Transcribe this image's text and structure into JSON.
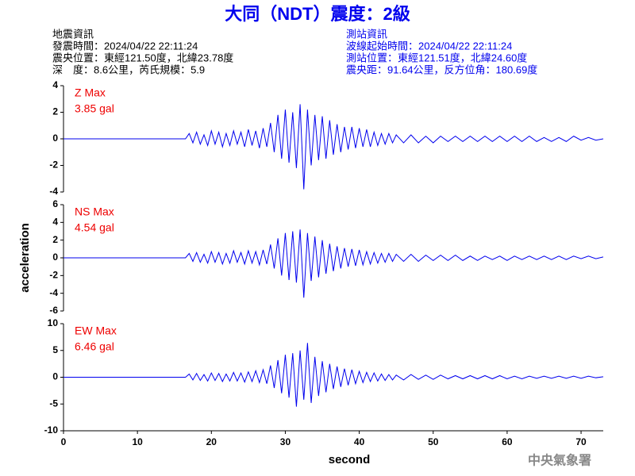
{
  "header": {
    "title": "大同（NDT）震度：2級",
    "quake_info": [
      "地震資訊",
      "發震時間：2024/04/22 22:11:24",
      "震央位置：東經121.50度，北緯23.78度",
      "深　度：8.6公里，芮氏規模：5.9"
    ],
    "station_info": [
      "測站資訊",
      "波線起始時間：2024/04/22 22:11:24",
      "測站位置：東經121.51度，北緯24.60度",
      "震央距：91.64公里，反方位角：180.69度"
    ]
  },
  "chart_data": [
    {
      "type": "line",
      "xlim": [
        0,
        73
      ],
      "ylim": [
        -4,
        4
      ],
      "yticks": [
        -4,
        -2,
        0,
        2,
        4
      ],
      "x": [
        0,
        16.5,
        17,
        17.5,
        18,
        18.5,
        19,
        19.5,
        20,
        20.5,
        21,
        21.5,
        22,
        22.5,
        23,
        23.5,
        24,
        24.5,
        25,
        25.5,
        26,
        26.5,
        27,
        27.5,
        28,
        28.5,
        29,
        29.5,
        30,
        30.5,
        31,
        31.5,
        32,
        32.5,
        33,
        33.5,
        34,
        34.5,
        35,
        35.5,
        36,
        36.5,
        37,
        37.5,
        38,
        38.5,
        39,
        39.5,
        40,
        40.5,
        41,
        41.5,
        42,
        42.5,
        43,
        43.5,
        44,
        44.5,
        45,
        46,
        47,
        48,
        49,
        50,
        51,
        52,
        53,
        54,
        55,
        56,
        57,
        58,
        59,
        60,
        61,
        62,
        63,
        64,
        65,
        66,
        67,
        68,
        69,
        70,
        71,
        72,
        73
      ],
      "series": [
        {
          "name": "Z Max",
          "color": "#0000ee",
          "label_color": "#ee0000",
          "max_label": "3.85 gal",
          "values": [
            0,
            0,
            0.4,
            -0.3,
            0.5,
            -0.4,
            0.3,
            -0.5,
            0.6,
            -0.4,
            0.5,
            -0.6,
            0.4,
            -0.5,
            0.6,
            -0.4,
            0.5,
            -0.6,
            0.7,
            -0.5,
            0.6,
            -0.7,
            0.8,
            -0.6,
            1.2,
            -1.0,
            1.8,
            -1.5,
            2.2,
            -1.8,
            2.0,
            -2.2,
            2.6,
            -3.8,
            2.2,
            -2.0,
            1.8,
            -1.6,
            1.7,
            -1.5,
            1.4,
            -1.2,
            1.1,
            -1.0,
            0.9,
            -0.8,
            0.9,
            -0.7,
            0.8,
            -0.6,
            0.7,
            -0.6,
            0.5,
            -0.5,
            0.4,
            -0.4,
            0.4,
            -0.3,
            0.3,
            -0.3,
            0.3,
            -0.3,
            0.2,
            -0.3,
            0.2,
            -0.2,
            0.2,
            -0.2,
            0.2,
            -0.2,
            0.2,
            -0.2,
            0.2,
            -0.2,
            0.2,
            -0.2,
            0.2,
            -0.2,
            0.1,
            -0.2,
            0.1,
            -0.2,
            0.2,
            -0.1,
            0.1,
            -0.1,
            0
          ]
        }
      ]
    },
    {
      "type": "line",
      "xlim": [
        0,
        73
      ],
      "ylim": [
        -6,
        6
      ],
      "yticks": [
        -6,
        -4,
        -2,
        0,
        2,
        4,
        6
      ],
      "ylabel": "acceleration",
      "x": [
        0,
        16.5,
        17,
        17.5,
        18,
        18.5,
        19,
        19.5,
        20,
        20.5,
        21,
        21.5,
        22,
        22.5,
        23,
        23.5,
        24,
        24.5,
        25,
        25.5,
        26,
        26.5,
        27,
        27.5,
        28,
        28.5,
        29,
        29.5,
        30,
        30.5,
        31,
        31.5,
        32,
        32.5,
        33,
        33.5,
        34,
        34.5,
        35,
        35.5,
        36,
        36.5,
        37,
        37.5,
        38,
        38.5,
        39,
        39.5,
        40,
        40.5,
        41,
        41.5,
        42,
        42.5,
        43,
        43.5,
        44,
        44.5,
        45,
        46,
        47,
        48,
        49,
        50,
        51,
        52,
        53,
        54,
        55,
        56,
        57,
        58,
        59,
        60,
        61,
        62,
        63,
        64,
        65,
        66,
        67,
        68,
        69,
        70,
        71,
        72,
        73
      ],
      "series": [
        {
          "name": "NS Max",
          "color": "#0000ee",
          "label_color": "#ee0000",
          "max_label": "4.54 gal",
          "values": [
            0,
            0,
            0.5,
            -0.4,
            0.6,
            -0.5,
            0.4,
            -0.6,
            0.7,
            -0.5,
            0.6,
            -0.7,
            0.5,
            -0.6,
            0.8,
            -0.5,
            0.6,
            -0.7,
            0.8,
            -0.6,
            0.7,
            -0.8,
            0.9,
            -0.7,
            1.5,
            -1.2,
            2.2,
            -2.0,
            2.8,
            -2.5,
            3.0,
            -2.8,
            3.2,
            -4.5,
            2.8,
            -2.6,
            2.4,
            -2.2,
            2.0,
            -1.8,
            1.6,
            -1.5,
            1.3,
            -1.2,
            1.1,
            -1.0,
            1.0,
            -0.9,
            0.9,
            -0.8,
            0.7,
            -0.7,
            0.6,
            -0.6,
            0.5,
            -0.5,
            0.5,
            -0.4,
            0.4,
            -0.4,
            0.4,
            -0.4,
            0.3,
            -0.3,
            0.3,
            -0.3,
            0.3,
            -0.3,
            0.2,
            -0.3,
            0.2,
            -0.2,
            0.2,
            -0.3,
            0.2,
            -0.2,
            0.2,
            -0.2,
            0.2,
            -0.2,
            0.2,
            -0.2,
            0.2,
            -0.1,
            0.2,
            -0.1,
            0.1
          ]
        }
      ]
    },
    {
      "type": "line",
      "xlim": [
        0,
        73
      ],
      "ylim": [
        -10,
        10
      ],
      "yticks": [
        -10,
        -5,
        0,
        5,
        10
      ],
      "xticks": [
        0,
        10,
        20,
        30,
        40,
        50,
        60,
        70
      ],
      "xlabel": "second",
      "x": [
        0,
        16.5,
        17,
        17.5,
        18,
        18.5,
        19,
        19.5,
        20,
        20.5,
        21,
        21.5,
        22,
        22.5,
        23,
        23.5,
        24,
        24.5,
        25,
        25.5,
        26,
        26.5,
        27,
        27.5,
        28,
        28.5,
        29,
        29.5,
        30,
        30.5,
        31,
        31.5,
        32,
        32.5,
        33,
        33.5,
        34,
        34.5,
        35,
        35.5,
        36,
        36.5,
        37,
        37.5,
        38,
        38.5,
        39,
        39.5,
        40,
        40.5,
        41,
        41.5,
        42,
        42.5,
        43,
        43.5,
        44,
        44.5,
        45,
        46,
        47,
        48,
        49,
        50,
        51,
        52,
        53,
        54,
        55,
        56,
        57,
        58,
        59,
        60,
        61,
        62,
        63,
        64,
        65,
        66,
        67,
        68,
        69,
        70,
        71,
        72,
        73
      ],
      "series": [
        {
          "name": "EW Max",
          "color": "#0000ee",
          "label_color": "#ee0000",
          "max_label": "6.46 gal",
          "values": [
            0,
            0,
            0.6,
            -0.5,
            0.7,
            -0.6,
            0.5,
            -0.7,
            0.8,
            -0.6,
            0.7,
            -0.8,
            0.6,
            -0.7,
            0.9,
            -0.7,
            0.8,
            -0.9,
            1.0,
            -0.8,
            1.2,
            -1.0,
            1.4,
            -1.2,
            2.2,
            -2.0,
            3.2,
            -3.0,
            4.2,
            -3.8,
            4.5,
            -5.5,
            5.0,
            -4.2,
            6.4,
            -4.8,
            3.8,
            -3.5,
            3.0,
            -2.8,
            2.5,
            -2.2,
            2.0,
            -1.8,
            1.6,
            -1.5,
            1.4,
            -1.2,
            1.1,
            -1.0,
            0.9,
            -0.8,
            0.8,
            -0.7,
            0.6,
            -0.6,
            0.5,
            -0.5,
            0.4,
            -0.5,
            0.5,
            -0.4,
            0.4,
            -0.4,
            0.4,
            -0.3,
            0.3,
            -0.3,
            0.3,
            -0.3,
            0.3,
            -0.3,
            0.3,
            -0.3,
            0.2,
            -0.3,
            0.2,
            -0.2,
            0.2,
            -0.2,
            0.2,
            -0.2,
            0.2,
            -0.2,
            0.2,
            -0.1,
            0.1
          ]
        }
      ]
    }
  ],
  "footer": "中央氣象署"
}
